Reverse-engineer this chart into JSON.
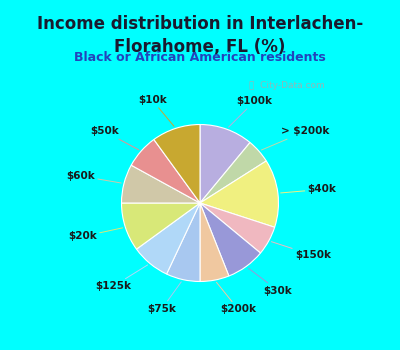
{
  "title": "Income distribution in Interlachen-\nFlorahome, FL (%)",
  "subtitle": "Black or African American residents",
  "bg_color": "#00ffff",
  "panel_color": "#dff0e8",
  "slices": [
    {
      "label": "$100k",
      "value": 11,
      "color": "#b8aee0",
      "start_hint": "top-right"
    },
    {
      "label": "> $200k",
      "value": 5,
      "color": "#c0d8a8"
    },
    {
      "label": "$40k",
      "value": 14,
      "color": "#f0f080"
    },
    {
      "label": "$150k",
      "value": 6,
      "color": "#f0b8c0"
    },
    {
      "label": "$30k",
      "value": 8,
      "color": "#9898d8"
    },
    {
      "label": "$200k",
      "value": 6,
      "color": "#f0c8a0"
    },
    {
      "label": "$75k",
      "value": 7,
      "color": "#a8c8f0"
    },
    {
      "label": "$125k",
      "value": 8,
      "color": "#b0d8f8"
    },
    {
      "label": "$20k",
      "value": 10,
      "color": "#d8e878"
    },
    {
      "label": "$60k",
      "value": 8,
      "color": "#d0c8a8"
    },
    {
      "label": "$50k",
      "value": 7,
      "color": "#e89090"
    },
    {
      "label": "$10k",
      "value": 10,
      "color": "#c8a830"
    }
  ],
  "title_fontsize": 12,
  "subtitle_fontsize": 9,
  "label_fontsize": 7.5
}
